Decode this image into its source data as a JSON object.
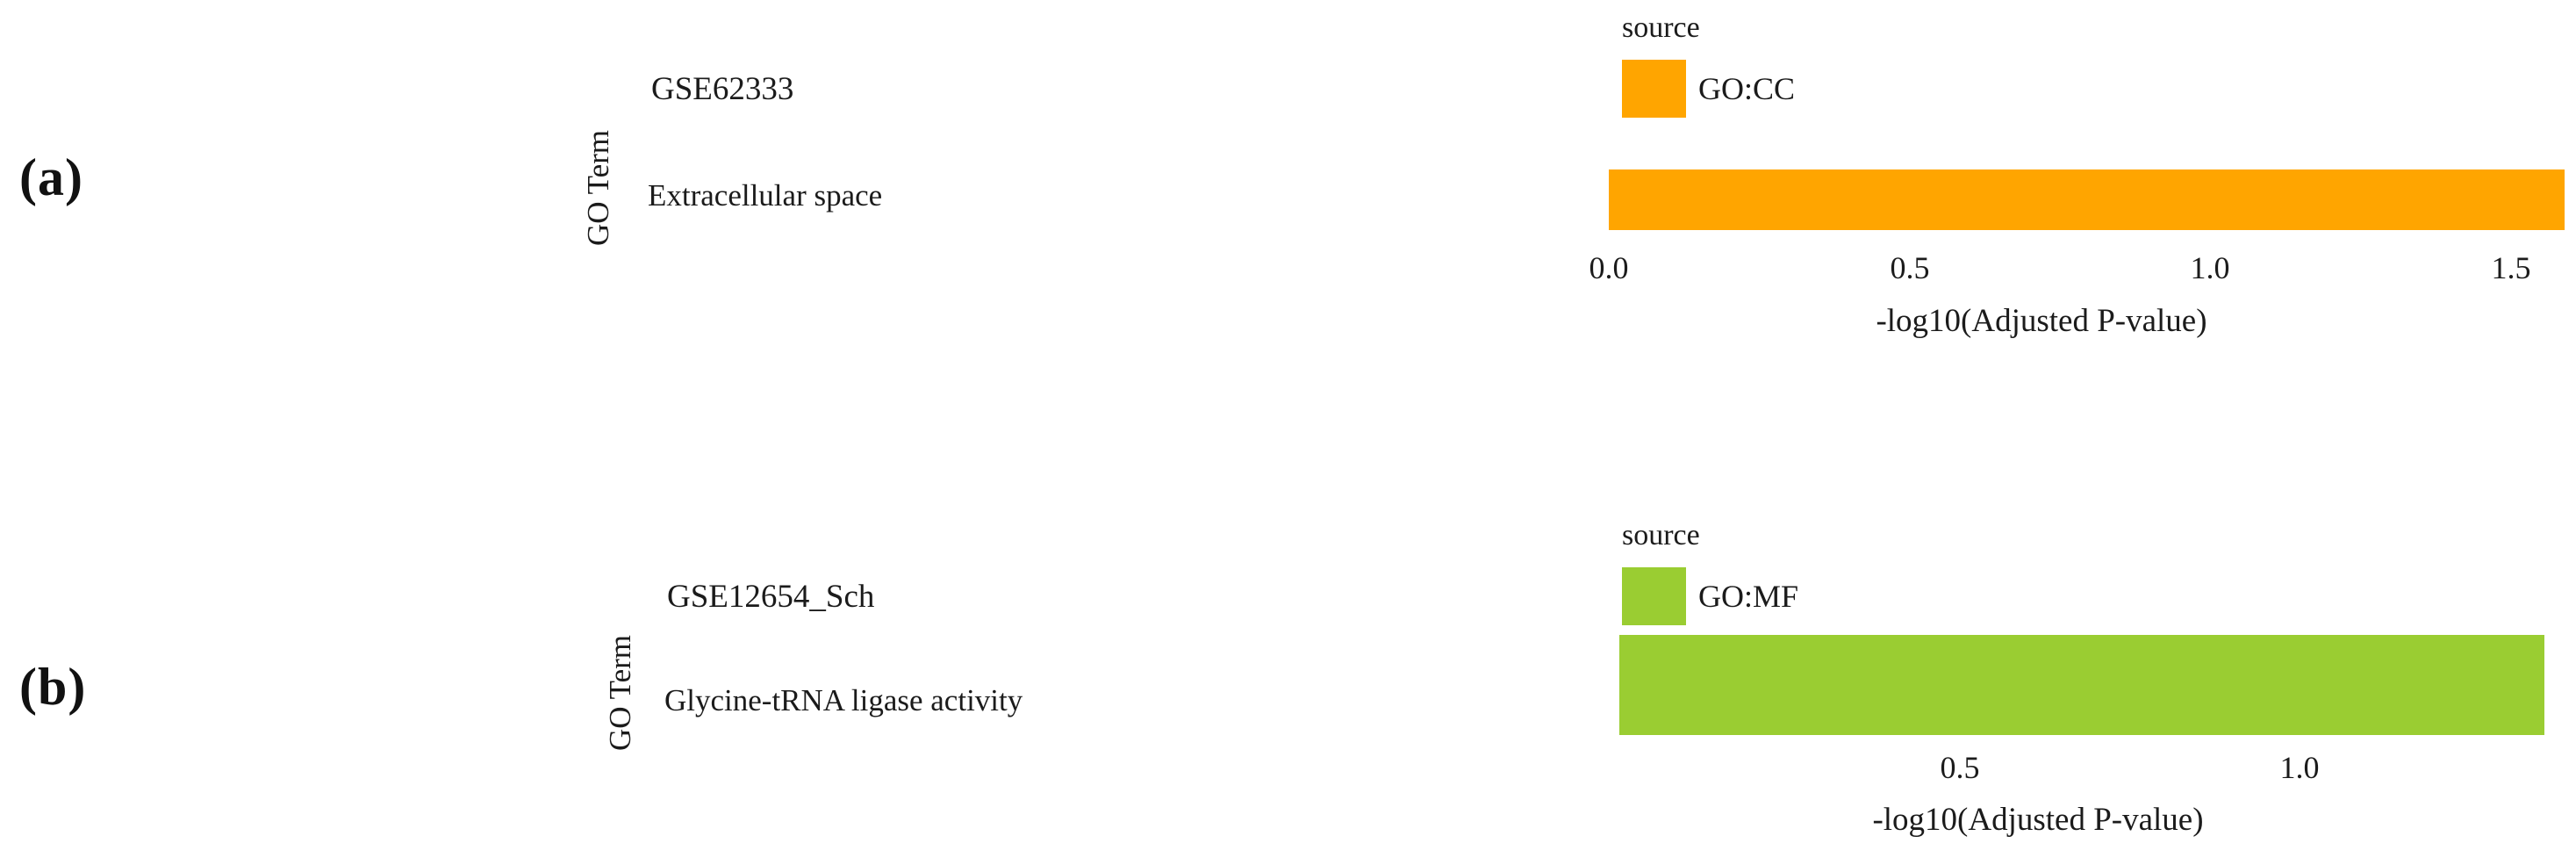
{
  "figure": {
    "background_color": "#ffffff",
    "text_color": "#1b1b1b",
    "panel_labels": [
      "(a)",
      "(b)"
    ]
  },
  "chart_data": [
    {
      "type": "bar",
      "orientation": "horizontal",
      "panel_label": "(a)",
      "title": "GSE62333",
      "xlabel": "-log10(Adjusted P-value)",
      "ylabel": "GO Term",
      "categories": [
        "Extracellular space"
      ],
      "values": [
        1.59
      ],
      "bar_color": "#FFA500",
      "xlim": [
        0,
        1.61
      ],
      "xticks": [
        0.0,
        0.5,
        1.0,
        1.5
      ],
      "xtick_labels": [
        "0.0",
        "0.5",
        "1.0",
        "1.5"
      ],
      "grid": false,
      "legend_position": "top-right",
      "legend": {
        "title": "source",
        "entries": [
          {
            "label": "GO:CC",
            "color": "#FFA500"
          }
        ]
      }
    },
    {
      "type": "bar",
      "orientation": "horizontal",
      "panel_label": "(b)",
      "title": "GSE12654_Sch",
      "xlabel": "-log10(Adjusted P-value)",
      "ylabel": "GO Term",
      "categories": [
        "Glycine-tRNA ligase activity"
      ],
      "values": [
        1.36
      ],
      "bar_color": "#9ACD32",
      "xlim": [
        0,
        1.41
      ],
      "xticks": [
        0.5,
        1.0
      ],
      "xtick_labels": [
        "0.5",
        "1.0"
      ],
      "grid": false,
      "legend_position": "top-right",
      "legend": {
        "title": "source",
        "entries": [
          {
            "label": "GO:MF",
            "color": "#9ACD32"
          }
        ]
      }
    }
  ]
}
